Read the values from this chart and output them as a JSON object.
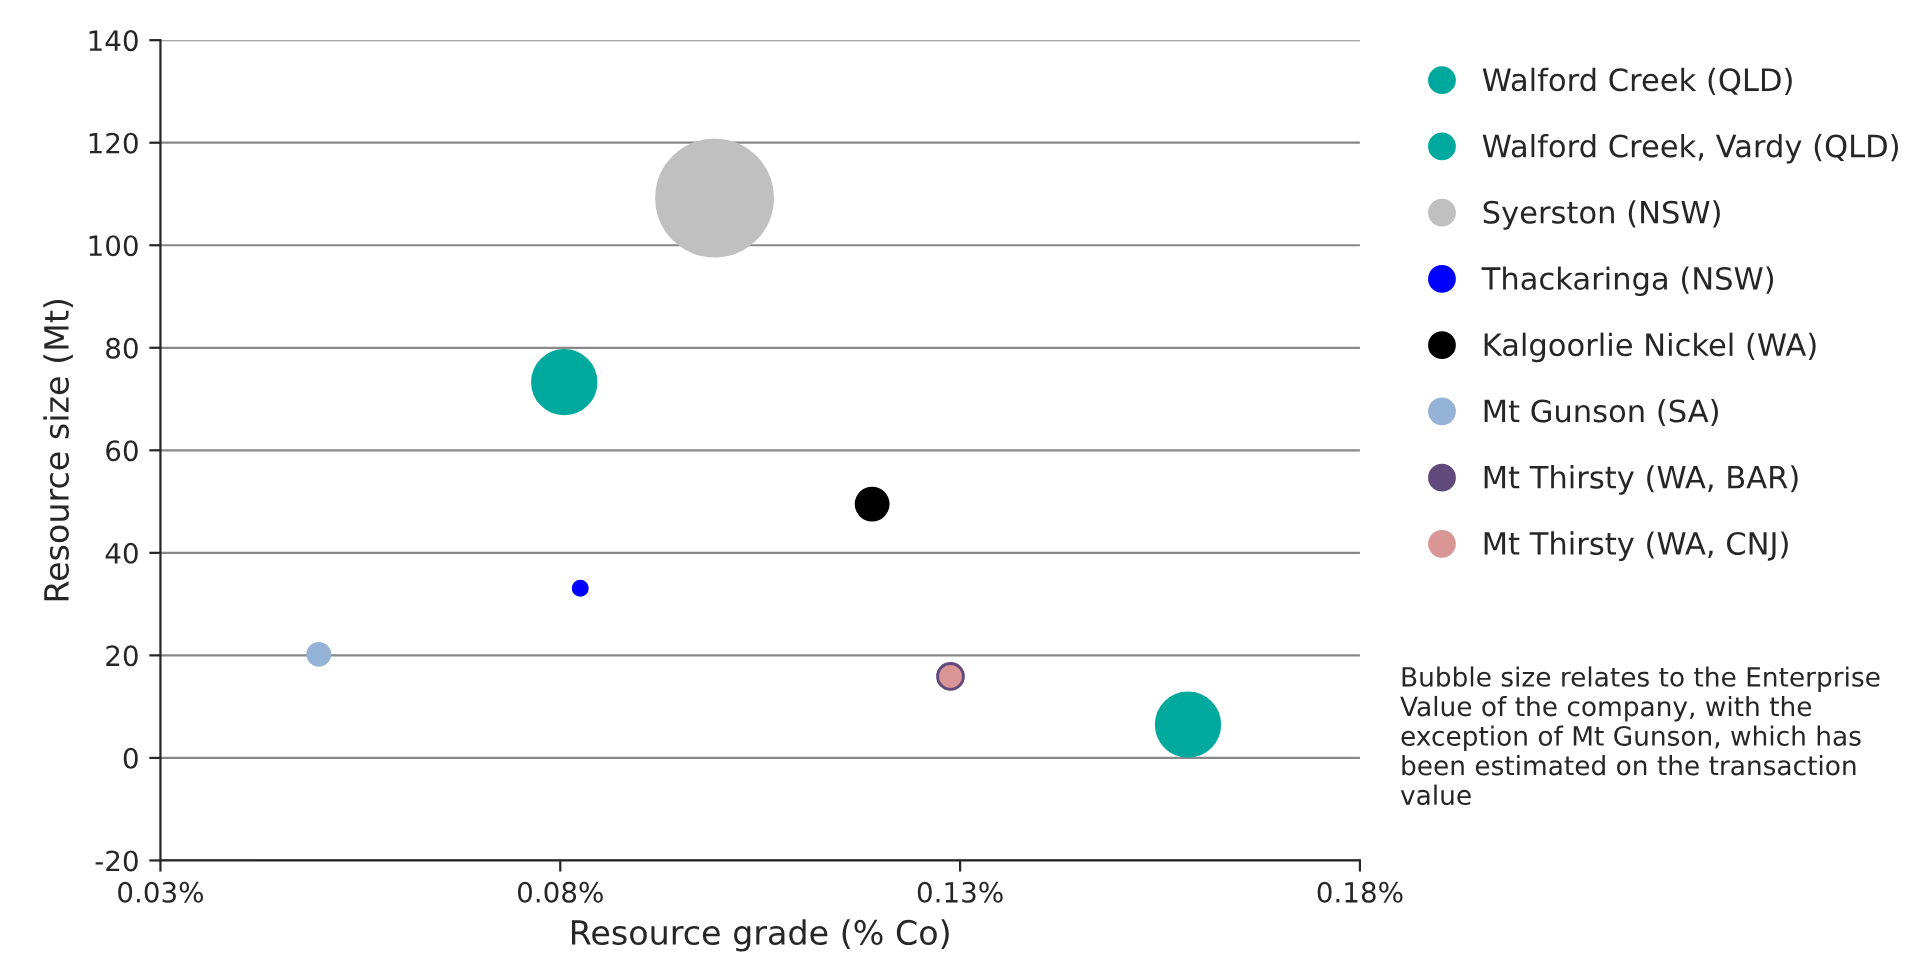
{
  "chart_data": {
    "type": "bubble",
    "xlabel": "Resource grade (% Co)",
    "ylabel": "Resource size (Mt)",
    "xlim": [
      0.03,
      0.18
    ],
    "xticks": [
      {
        "value": 0.03,
        "label": "0.03%"
      },
      {
        "value": 0.08,
        "label": "0.08%"
      },
      {
        "value": 0.13,
        "label": "0.13%"
      },
      {
        "value": 0.18,
        "label": "0.18%"
      }
    ],
    "ylim": [
      -20,
      140
    ],
    "yticks": [
      -20,
      0,
      20,
      40,
      60,
      80,
      100,
      120,
      140
    ],
    "grid": "y",
    "legend": "right",
    "series": [
      {
        "name": "Walford Creek (QLD)",
        "color": "#00a99d",
        "x": [
          0.1585
        ],
        "values": [
          6.5
        ],
        "sizes": [
          0.3
        ]
      },
      {
        "name": "Walford Creek, Vardy (QLD)",
        "color": "#00a99d",
        "x": [
          0.0805
        ],
        "values": [
          73.3
        ],
        "sizes": [
          0.3
        ]
      },
      {
        "name": "Syerston (NSW)",
        "color": "#c0c0c0",
        "x": [
          0.0993
        ],
        "values": [
          109.2
        ],
        "sizes": [
          1
        ]
      },
      {
        "name": "Thackaringa (NSW)",
        "color": "#0000ff",
        "x": [
          0.0825
        ],
        "values": [
          33.1
        ],
        "sizes": [
          0.015
        ]
      },
      {
        "name": "Kalgoorlie Nickel (WA)",
        "color": "#000000",
        "x": [
          0.119
        ],
        "values": [
          49.5
        ],
        "sizes": [
          0.076
        ]
      },
      {
        "name": "Mt Gunson (SA)",
        "color": "#95b3d7",
        "x": [
          0.0498
        ],
        "values": [
          20.2
        ],
        "sizes": [
          0.036
        ]
      },
      {
        "name": "Mt Thirsty (WA, BAR)",
        "color": "#604a7b",
        "x": [
          0.1288
        ],
        "values": [
          15.9
        ],
        "sizes": [
          0.05
        ]
      },
      {
        "name": "Mt Thirsty (WA, CNJ)",
        "color": "#d99694",
        "x": [
          0.1288
        ],
        "values": [
          15.9
        ],
        "sizes": [
          0.03
        ]
      }
    ],
    "annotations": [
      "Bubble size relates to the Enterprise Value of the company, with the exception of Mt Gunson, which has been estimated on the transaction value"
    ]
  }
}
